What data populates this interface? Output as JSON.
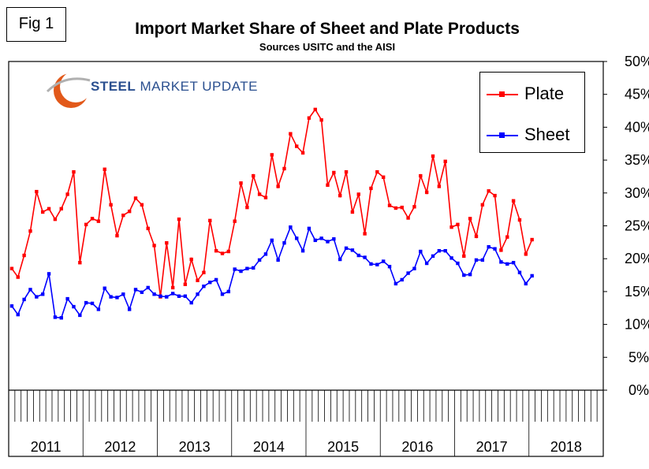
{
  "figure_label": "Fig 1",
  "logo": {
    "brand_bold": "STEEL",
    "brand_rest": " MARKET UPDATE"
  },
  "colors": {
    "plate": "#ff0000",
    "sheet": "#0000ff",
    "logo_text": "#2a4f8f",
    "logo_swoosh": "#e2591a"
  },
  "chart_data": {
    "type": "line",
    "title": "Import Market Share of Sheet and Plate Products",
    "subtitle": "Sources USITC and the AISI",
    "x_unit": "month",
    "x_start": "2011-01",
    "year_labels": [
      "2011",
      "2012",
      "2013",
      "2014",
      "2015",
      "2016",
      "2017",
      "2018"
    ],
    "yaxis_side": "right",
    "ylim": [
      0,
      50
    ],
    "yticks": [
      "0%",
      "5%",
      "10%",
      "15%",
      "20%",
      "25%",
      "30%",
      "35%",
      "40%",
      "45%",
      "50%"
    ],
    "legend_position": "top-right",
    "grid": false,
    "series": [
      {
        "name": "Plate",
        "color": "#ff0000",
        "values": [
          18.5,
          17.2,
          20.5,
          24.2,
          30.2,
          27.1,
          27.6,
          26.0,
          27.6,
          29.8,
          33.2,
          19.4,
          25.2,
          26.1,
          25.7,
          33.6,
          28.2,
          23.5,
          26.6,
          27.2,
          29.2,
          28.2,
          24.6,
          22.0,
          14.2,
          22.4,
          15.6,
          26.0,
          16.1,
          19.9,
          16.7,
          17.9,
          25.8,
          21.2,
          20.8,
          21.1,
          25.7,
          31.5,
          27.8,
          32.6,
          29.8,
          29.3,
          35.8,
          31.0,
          33.7,
          39.0,
          37.1,
          36.1,
          41.4,
          42.7,
          41.1,
          31.2,
          33.1,
          29.6,
          33.2,
          27.1,
          29.8,
          23.8,
          30.7,
          33.2,
          32.4,
          28.1,
          27.7,
          27.8,
          26.2,
          27.9,
          32.6,
          30.1,
          35.6,
          31.0,
          34.8,
          24.8,
          25.2,
          20.4,
          26.1,
          23.4,
          28.2,
          30.3,
          29.6,
          21.3,
          23.3,
          28.8,
          25.9,
          20.7,
          22.9
        ]
      },
      {
        "name": "Sheet",
        "color": "#0000ff",
        "values": [
          12.8,
          11.5,
          13.8,
          15.3,
          14.2,
          14.6,
          17.7,
          11.1,
          11.0,
          13.9,
          12.7,
          11.4,
          13.3,
          13.2,
          12.3,
          15.5,
          14.2,
          14.1,
          14.6,
          12.3,
          15.3,
          14.9,
          15.6,
          14.6,
          14.3,
          14.2,
          14.7,
          14.3,
          14.3,
          13.3,
          14.6,
          15.8,
          16.4,
          16.8,
          14.6,
          15.0,
          18.4,
          18.1,
          18.5,
          18.6,
          19.8,
          20.7,
          22.8,
          19.8,
          22.4,
          24.8,
          23.1,
          21.2,
          24.6,
          22.8,
          23.1,
          22.6,
          23.0,
          19.9,
          21.6,
          21.3,
          20.5,
          20.2,
          19.2,
          19.1,
          19.6,
          18.8,
          16.2,
          16.8,
          17.8,
          18.5,
          21.1,
          19.3,
          20.4,
          21.2,
          21.2,
          20.1,
          19.3,
          17.5,
          17.6,
          19.8,
          19.8,
          21.8,
          21.5,
          19.5,
          19.2,
          19.4,
          17.9,
          16.2,
          17.4
        ]
      },
      {
        "name": "",
        "color": "#000000",
        "values": []
      }
    ]
  }
}
